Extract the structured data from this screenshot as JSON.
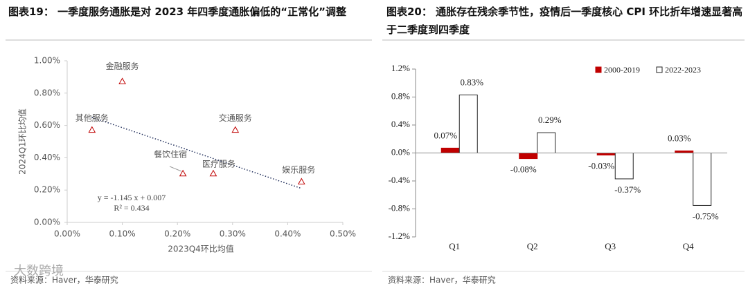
{
  "watermark": "大数跨境",
  "chart_data": [
    {
      "type": "scatter",
      "title": "图表19：  一季度服务通胀是对 2023 年四季度通胀偏低的“正常化”调整",
      "x_label": "2023Q4环比均值",
      "y_label": "2024Q1环比均值",
      "x": [
        0.1,
        0.045,
        0.305,
        0.21,
        0.265,
        0.425
      ],
      "values": [
        0.87,
        0.57,
        0.57,
        0.3,
        0.3,
        0.25
      ],
      "point_labels": [
        "金融服务",
        "其他服务",
        "交通服务",
        "餐饮住宿",
        "医疗服务",
        "娱乐服务"
      ],
      "color": "#c00000",
      "trendline": {
        "x": [
          0.045,
          0.425
        ],
        "y": [
          0.65,
          0.21
        ],
        "color": "#1f2d5a"
      },
      "annotations": [
        "y = -1.145 x + 0.007",
        "R² = 0.434"
      ],
      "xlim": [
        0,
        0.5
      ],
      "ylim": [
        0,
        1.0
      ],
      "xticks": [
        {
          "value": 0,
          "label": "0.00%"
        },
        {
          "value": 0.1,
          "label": "0.10%"
        },
        {
          "value": 0.2,
          "label": "0.20%"
        },
        {
          "value": 0.3,
          "label": "0.30%"
        },
        {
          "value": 0.4,
          "label": "0.40%"
        },
        {
          "value": 0.5,
          "label": "0.50%"
        }
      ],
      "yticks": [
        {
          "value": 0,
          "label": "0.00%"
        },
        {
          "value": 0.2,
          "label": "0.20%"
        },
        {
          "value": 0.4,
          "label": "0.40%"
        },
        {
          "value": 0.6,
          "label": "0.60%"
        },
        {
          "value": 0.8,
          "label": "0.80%"
        },
        {
          "value": 1.0,
          "label": "1.00%"
        }
      ],
      "source": "资料来源：Haver，华泰研究"
    },
    {
      "type": "bar",
      "title": "图表20：  通胀存在残余季节性，疫情后一季度核心 CPI 环比折年增速显著高于二季度到四季度",
      "categories": [
        "Q1",
        "Q2",
        "Q3",
        "Q4"
      ],
      "series": [
        {
          "name": "2000-2019",
          "color": "#c00000",
          "values": [
            0.07,
            -0.08,
            -0.03,
            0.03
          ],
          "value_labels": [
            "0.07%",
            "-0.08%",
            "-0.03%",
            "0.03%"
          ]
        },
        {
          "name": "2022-2023",
          "color": "#ffffff",
          "values": [
            0.83,
            0.29,
            -0.37,
            -0.75
          ],
          "value_labels": [
            "0.83%",
            "0.29%",
            "-0.37%",
            "-0.75%"
          ]
        }
      ],
      "ylim": [
        -1.2,
        1.2
      ],
      "yticks": [
        {
          "value": -1.2,
          "label": "-1.2%"
        },
        {
          "value": -0.8,
          "label": "-0.8%"
        },
        {
          "value": -0.4,
          "label": "-0.4%"
        },
        {
          "value": 0,
          "label": "0.0%"
        },
        {
          "value": 0.4,
          "label": "0.4%"
        },
        {
          "value": 0.8,
          "label": "0.8%"
        },
        {
          "value": 1.2,
          "label": "1.2%"
        }
      ],
      "legend": "top-right",
      "source": "资料来源：Haver，华泰研究"
    }
  ]
}
